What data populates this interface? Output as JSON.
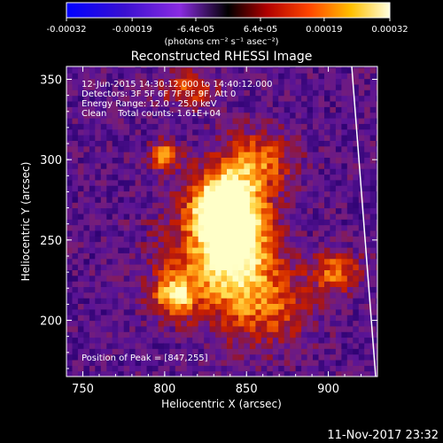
{
  "chart_data": {
    "type": "heatmap",
    "title": "Reconstructed RHESSI Image",
    "xlabel": "Heliocentric X (arcsec)",
    "ylabel": "Heliocentric Y (arcsec)",
    "xlim": [
      740,
      930
    ],
    "ylim": [
      165,
      358
    ],
    "x_ticks": [
      750,
      800,
      850,
      900
    ],
    "y_ticks": [
      200,
      250,
      300,
      350
    ],
    "colorbar": {
      "ticks": [
        "-0.00032",
        "-0.00019",
        "-6.4e-05",
        "6.4e-05",
        "0.00019",
        "0.00032"
      ],
      "values": [
        -0.00032,
        -0.00019,
        -6.4e-05,
        6.4e-05,
        0.00019,
        0.00032
      ],
      "unit_label": "(photons cm⁻² s⁻¹ asec⁻²)",
      "colors": [
        "#0000ff",
        "#4400cc",
        "#8a2be2",
        "#000000",
        "#cc0000",
        "#ff6600",
        "#ffcc00",
        "#ffffcc"
      ]
    },
    "sources": [
      {
        "x": 845,
        "y": 255,
        "sx": 14,
        "sy": 28,
        "amp": 1.0
      },
      {
        "x": 833,
        "y": 272,
        "sx": 12,
        "sy": 14,
        "amp": 0.85
      },
      {
        "x": 806,
        "y": 216,
        "sx": 9,
        "sy": 9,
        "amp": 0.75
      },
      {
        "x": 800,
        "y": 303,
        "sx": 6,
        "sy": 6,
        "amp": 0.8
      },
      {
        "x": 905,
        "y": 230,
        "sx": 10,
        "sy": 9,
        "amp": 0.6
      },
      {
        "x": 825,
        "y": 240,
        "sx": 20,
        "sy": 25,
        "amp": 0.5
      },
      {
        "x": 865,
        "y": 210,
        "sx": 18,
        "sy": 18,
        "amp": 0.45
      },
      {
        "x": 860,
        "y": 300,
        "sx": 14,
        "sy": 12,
        "amp": 0.45
      },
      {
        "x": 815,
        "y": 345,
        "sx": 12,
        "sy": 8,
        "amp": 0.45
      }
    ],
    "peak_position": [
      847,
      255
    ]
  },
  "annotations": {
    "time": "12-Jun-2015 14:30:12.000 to 14:40:12.000",
    "detectors": "Detectors: 3F 5F 6F 7F 8F 9F, Att 0",
    "energy": "Energy Range: 12.0 - 25.0 keV",
    "clean": "Clean    Total counts: 1.61E+04",
    "peak": "Position of Peak = [847,255]"
  },
  "footer": {
    "timestamp": "11-Nov-2017 23:32"
  }
}
